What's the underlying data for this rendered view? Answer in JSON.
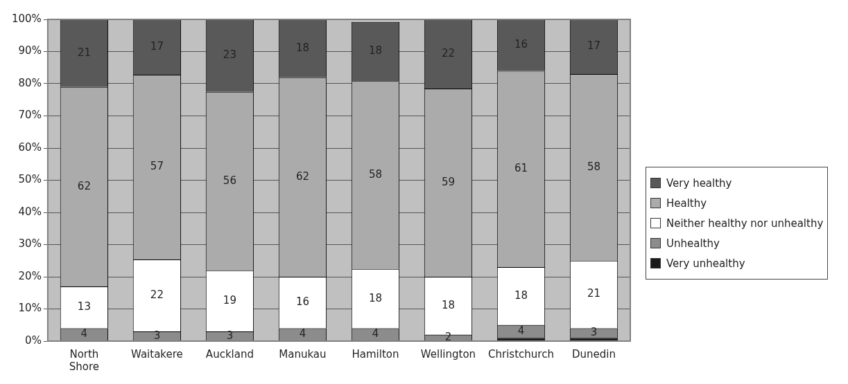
{
  "chart_data": {
    "type": "bar",
    "stacked": true,
    "categories": [
      "North Shore",
      "Waitakere",
      "Auckland",
      "Manukau",
      "Hamilton",
      "Wellington",
      "Christchurch",
      "Dunedin"
    ],
    "series": [
      {
        "name": "Very unhealthy",
        "color": "#1a1a1a",
        "values": [
          0,
          0,
          0,
          0,
          0,
          0,
          1,
          1
        ],
        "value_labels": [
          null,
          null,
          null,
          null,
          null,
          null,
          null,
          null
        ]
      },
      {
        "name": "Unhealthy",
        "color": "#8c8c8c",
        "values": [
          4,
          3,
          3,
          4,
          4,
          2,
          4,
          3
        ],
        "value_labels": [
          "4",
          "3",
          "3",
          "4",
          "4",
          "2",
          "4",
          "3"
        ]
      },
      {
        "name": "Neither healthy nor unhealthy",
        "color": "#ffffff",
        "values": [
          13,
          22.4,
          19,
          16,
          18.4,
          18,
          18,
          21
        ],
        "value_labels": [
          "13",
          "22",
          "19",
          "16",
          "18",
          "18",
          "18",
          "21"
        ]
      },
      {
        "name": "Healthy",
        "color": "#ababab",
        "values": [
          62,
          57.4,
          55.5,
          62,
          58.4,
          58.5,
          61,
          58
        ],
        "value_labels": [
          "62",
          "57",
          "56",
          "62",
          "58",
          "59",
          "61",
          "58"
        ]
      },
      {
        "name": "Very healthy",
        "color": "#595959",
        "values": [
          21,
          17.2,
          22.5,
          18,
          18.4,
          21.5,
          16,
          17
        ],
        "value_labels": [
          "21",
          "17",
          "23",
          "18",
          "18",
          "22",
          "16",
          "17"
        ]
      }
    ],
    "ylim": [
      0,
      100
    ],
    "yticks": [
      {
        "value": 0,
        "label": "0%"
      },
      {
        "value": 10,
        "label": "10%"
      },
      {
        "value": 20,
        "label": "20%"
      },
      {
        "value": 30,
        "label": "30%"
      },
      {
        "value": 40,
        "label": "40%"
      },
      {
        "value": 50,
        "label": "50%"
      },
      {
        "value": 60,
        "label": "60%"
      },
      {
        "value": 70,
        "label": "70%"
      },
      {
        "value": 80,
        "label": "80%"
      },
      {
        "value": 90,
        "label": "90%"
      },
      {
        "value": 100,
        "label": "100%"
      }
    ],
    "grid": "y",
    "legend": "right"
  }
}
